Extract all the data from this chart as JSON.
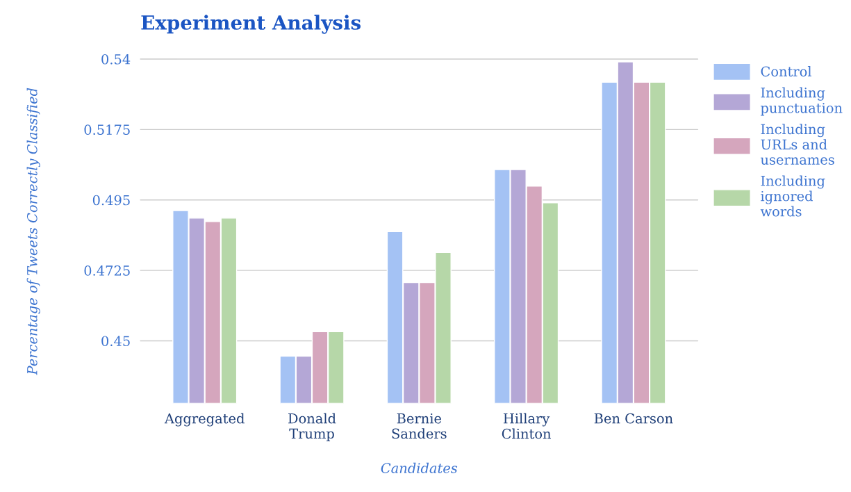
{
  "chart_data": {
    "type": "bar",
    "title": "Experiment Analysis",
    "xlabel": "Candidates",
    "ylabel": "Percentage of Tweets Correctly Classified",
    "categories": [
      "Aggregated",
      "Donald\nTrump",
      "Bernie\nSanders",
      "Hillary\nClinton",
      "Ben Carson"
    ],
    "series": [
      {
        "name": "Control",
        "color": "#a4c2f4",
        "values": [
          0.4916,
          0.4451,
          0.4849,
          0.5047,
          0.5326
        ]
      },
      {
        "name": "Including\npunctuation",
        "color": "#b4a7d6",
        "values": [
          0.4892,
          0.4451,
          0.4686,
          0.5047,
          0.5391
        ]
      },
      {
        "name": "Including\nURLs and\nusernames",
        "color": "#d5a6bd",
        "values": [
          0.4881,
          0.4529,
          0.4686,
          0.4994,
          0.5326
        ]
      },
      {
        "name": "Including\nignored\nwords",
        "color": "#b6d7a8",
        "values": [
          0.4892,
          0.4529,
          0.4782,
          0.4941,
          0.5326
        ]
      }
    ],
    "ylim": [
      0.43,
      0.54
    ],
    "yticks": [
      0.45,
      0.4725,
      0.495,
      0.5175,
      0.54
    ],
    "grid": "y",
    "legend": "right"
  }
}
